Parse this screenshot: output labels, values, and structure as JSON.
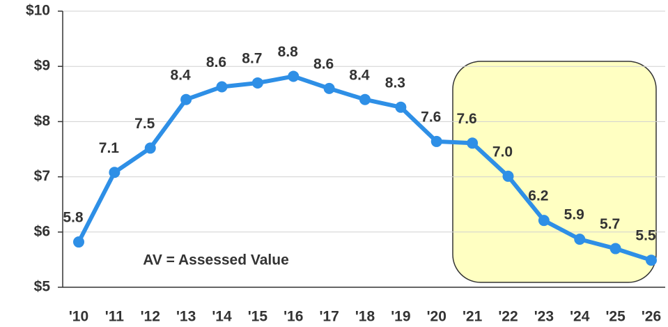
{
  "chart_data": {
    "type": "line",
    "annotation": "AV = Assessed Value",
    "categories": [
      "'10",
      "'11",
      "'12",
      "'13",
      "'14",
      "'15",
      "'16",
      "'17",
      "'18",
      "'19",
      "'20",
      "'21",
      "'22",
      "'23",
      "'24",
      "'25",
      "'26"
    ],
    "series": [
      {
        "name": "AV",
        "color": "#2e8fe6",
        "values": [
          5.82,
          7.08,
          7.52,
          8.4,
          8.63,
          8.7,
          8.82,
          8.6,
          8.4,
          8.26,
          7.64,
          7.61,
          7.01,
          6.21,
          5.87,
          5.7,
          5.49
        ],
        "value_labels": [
          "5.8",
          "7.1",
          "7.5",
          "8.4",
          "8.6",
          "8.7",
          "8.8",
          "8.6",
          "8.4",
          "8.3",
          "7.6",
          "7.6",
          "7.0",
          "6.2",
          "5.9",
          "5.7",
          "5.5"
        ]
      }
    ],
    "ylim": [
      5,
      10
    ],
    "yticks": [
      {
        "value": 5,
        "label": "$5"
      },
      {
        "value": 6,
        "label": "$6"
      },
      {
        "value": 7,
        "label": "$7"
      },
      {
        "value": 8,
        "label": "$8"
      },
      {
        "value": 9,
        "label": "$9"
      },
      {
        "value": 10,
        "label": "$10"
      }
    ],
    "grid": true
  }
}
